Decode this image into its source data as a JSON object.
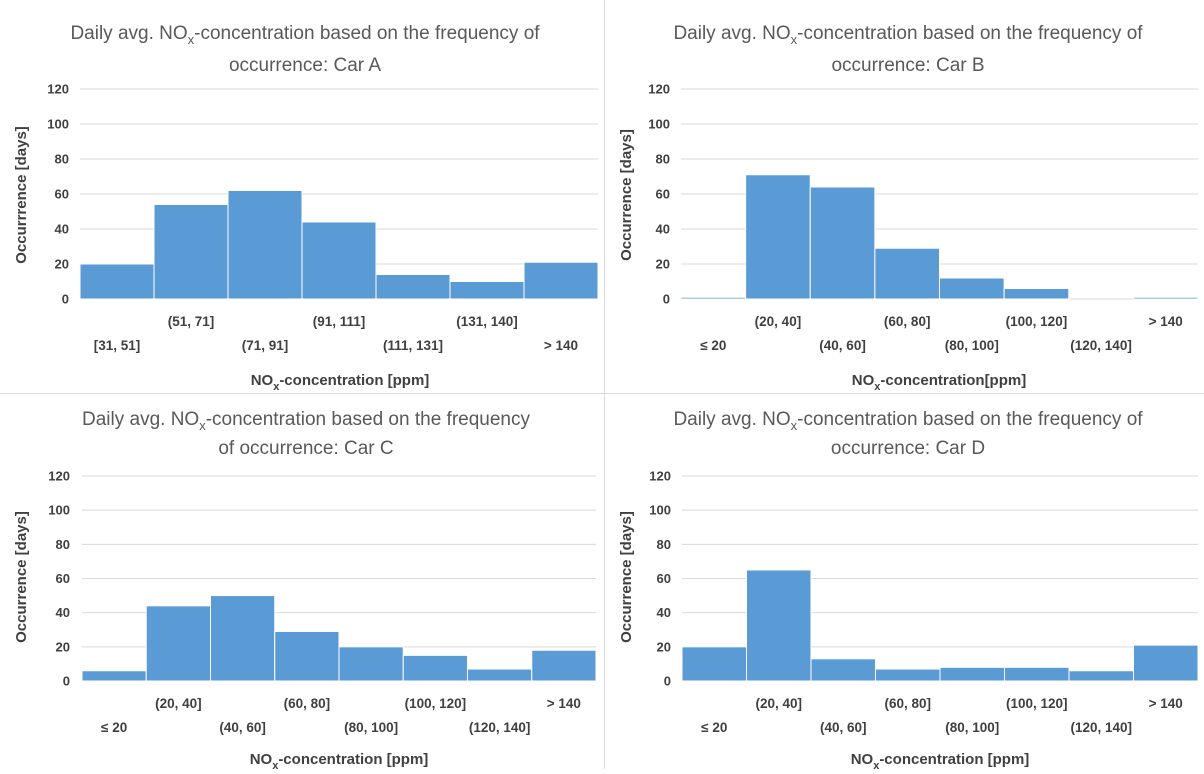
{
  "colors": {
    "bar": "#5b9bd5",
    "grid": "#d9d9d9",
    "text": "#404040",
    "title": "#595959"
  },
  "chart_data": [
    {
      "type": "bar",
      "title_parts": [
        "Daily avg. NO",
        "x",
        "-concentration based on the frequency of",
        "occurrence: Car A"
      ],
      "xlabel_parts": [
        "NO",
        "x",
        "-concentration [ppm]"
      ],
      "ylabel": "Occurrrence [days]",
      "categories": [
        "[31, 51]",
        "(51, 71]",
        "(71, 91]",
        "(91, 111]",
        "(111, 131]",
        "(131, 140]",
        "> 140"
      ],
      "values": [
        20,
        54,
        62,
        44,
        14,
        10,
        21
      ],
      "yticks": [
        "0",
        "20",
        "40",
        "60",
        "80",
        "100",
        "120"
      ],
      "ylim": [
        0,
        120
      ],
      "grid": true
    },
    {
      "type": "bar",
      "title_parts": [
        "Daily avg. NO",
        "x",
        "-concentration based on the frequency of",
        "occurrence: Car B"
      ],
      "xlabel_parts": [
        "NO",
        "x",
        "-concentration[ppm]"
      ],
      "ylabel": "Occurrence [days]",
      "categories": [
        "≤ 20",
        "(20, 40]",
        "(40, 60]",
        "(60, 80]",
        "(80, 100]",
        "(100, 120]",
        "(120, 140]",
        "> 140"
      ],
      "values": [
        1,
        71,
        64,
        29,
        12,
        6,
        0,
        1
      ],
      "yticks": [
        "0",
        "20",
        "40",
        "60",
        "80",
        "100",
        "120"
      ],
      "ylim": [
        0,
        120
      ],
      "grid": true
    },
    {
      "type": "bar",
      "title_parts": [
        "Daily avg. NO",
        "x",
        "-concentration based on the frequency",
        "of occurrence: Car C"
      ],
      "xlabel_parts": [
        "NO",
        "x",
        "-concentration [ppm]"
      ],
      "ylabel": "Occurrence [days]",
      "categories": [
        "≤ 20",
        "(20, 40]",
        "(40, 60]",
        "(60, 80]",
        "(80, 100]",
        "(100, 120]",
        "(120, 140]",
        "> 140"
      ],
      "values": [
        6,
        44,
        50,
        29,
        20,
        15,
        7,
        18
      ],
      "yticks": [
        "0",
        "20",
        "40",
        "60",
        "80",
        "100",
        "120"
      ],
      "ylim": [
        0,
        120
      ],
      "grid": true
    },
    {
      "type": "bar",
      "title_parts": [
        "Daily avg. NO",
        "x",
        "-concentration based on the frequency of",
        "occurrence: Car D"
      ],
      "xlabel_parts": [
        "NO",
        "x",
        "-concentration [ppm]"
      ],
      "ylabel": "Occurrence [days]",
      "categories": [
        "≤ 20",
        "(20, 40]",
        "(40, 60]",
        "(60, 80]",
        "(80, 100]",
        "(100, 120]",
        "(120, 140]",
        "> 140"
      ],
      "values": [
        20,
        65,
        13,
        7,
        8,
        8,
        6,
        21
      ],
      "yticks": [
        "0",
        "20",
        "40",
        "60",
        "80",
        "100",
        "120"
      ],
      "ylim": [
        0,
        120
      ],
      "grid": true
    }
  ]
}
